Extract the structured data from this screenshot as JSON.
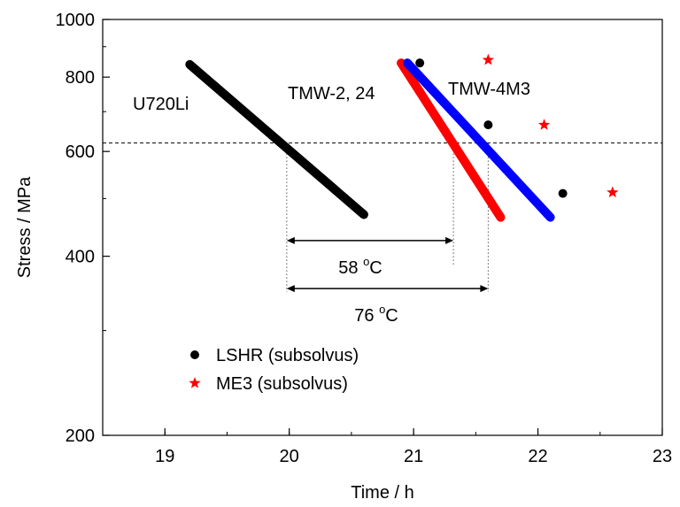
{
  "chart_data": {
    "type": "line",
    "xlabel": "Time / h",
    "ylabel": "Stress / MPa",
    "xlim": [
      18.5,
      23
    ],
    "ylim": [
      200,
      1000
    ],
    "y_scale": "log",
    "grid": false,
    "x_ticks": [
      "19",
      "20",
      "21",
      "22",
      "23"
    ],
    "y_ticks": [
      "200",
      "400",
      "600",
      "800",
      "1000"
    ],
    "series": [
      {
        "name": "U720Li",
        "color": "#000000",
        "points": [
          [
            19.2,
            840
          ],
          [
            20.6,
            470
          ]
        ]
      },
      {
        "name": "TMW-2, 24",
        "color": "#ff0000",
        "points": [
          [
            20.9,
            845
          ],
          [
            21.7,
            465
          ]
        ]
      },
      {
        "name": "TMW-4M3",
        "color": "#0000ff",
        "points": [
          [
            20.95,
            845
          ],
          [
            22.1,
            465
          ]
        ]
      }
    ],
    "scatter_series": [
      {
        "name": "LSHR (subsolvus)",
        "marker": "circle",
        "color": "#000000",
        "points": [
          [
            21.05,
            845
          ],
          [
            21.6,
            665
          ],
          [
            22.2,
            510
          ]
        ]
      },
      {
        "name": "ME3 (subsolvus)",
        "marker": "star",
        "color": "#ff0000",
        "points": [
          [
            21.6,
            855
          ],
          [
            22.05,
            665
          ],
          [
            22.6,
            512
          ]
        ]
      }
    ],
    "reference_line_y": 620,
    "vertical_guides_x": [
      19.98,
      21.32,
      21.6
    ],
    "annotations": [
      {
        "text": "58",
        "superscript": "o",
        "unit": "C",
        "x_from": 19.98,
        "x_to": 21.32,
        "y": 425
      },
      {
        "text": "76",
        "superscript": "o",
        "unit": "C",
        "x_from": 19.98,
        "x_to": 21.6,
        "y": 353
      }
    ],
    "legend_position": "lower-left"
  }
}
